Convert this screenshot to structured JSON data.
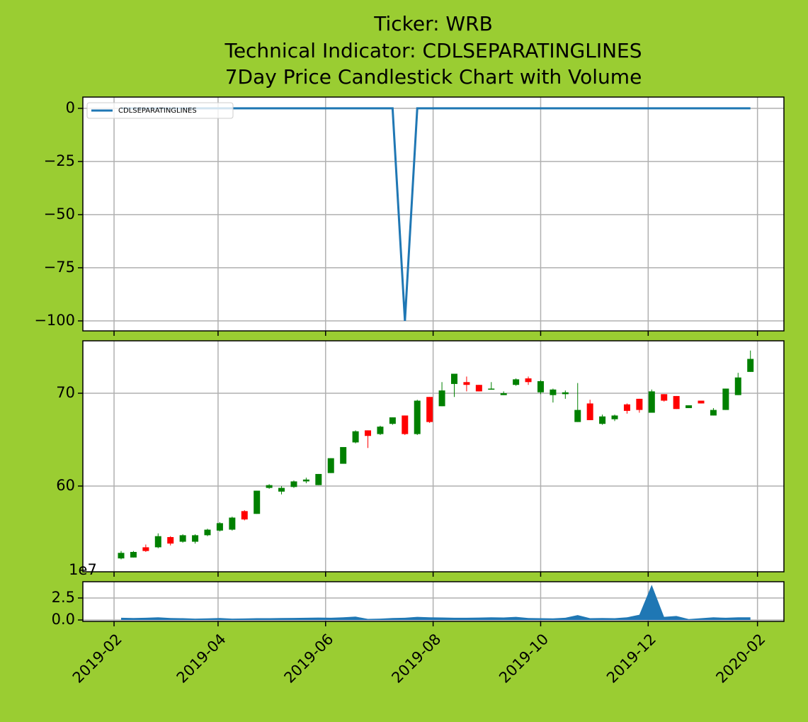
{
  "chart_data": [
    {
      "type": "line",
      "title": [
        "Ticker: WRB",
        "Technical Indicator: CDLSEPARATINGLINES",
        "7Day Price Candlestick Chart with Volume"
      ],
      "x": [
        35,
        42,
        49,
        56,
        63,
        70,
        77,
        84,
        91,
        98,
        105,
        112,
        119,
        126,
        133,
        140,
        147,
        154,
        161,
        168,
        175,
        182,
        189,
        196,
        203,
        210,
        217,
        224,
        231,
        238,
        245,
        252,
        259,
        266,
        273,
        280,
        287,
        294,
        301,
        308,
        315,
        322,
        329,
        336,
        343,
        350,
        357,
        364,
        371,
        378,
        385,
        392
      ],
      "xlim": [
        13.3,
        411
      ],
      "series": [
        {
          "name": "CDLSEPARATINGLINES",
          "color": "#1f77b4",
          "values": [
            0,
            0,
            0,
            0,
            0,
            0,
            0,
            0,
            0,
            0,
            0,
            0,
            0,
            0,
            0,
            0,
            0,
            0,
            0,
            0,
            0,
            0,
            0,
            -100,
            0,
            0,
            0,
            0,
            0,
            0,
            0,
            0,
            0,
            0,
            0,
            0,
            0,
            0,
            0,
            0,
            0,
            0,
            0,
            0,
            0,
            0,
            0,
            0,
            0,
            0,
            0,
            0
          ]
        }
      ],
      "ylim": [
        -104.7,
        5.3
      ],
      "yticks": [
        0,
        {
          "value": -25,
          "label": "−25"
        },
        {
          "value": -50,
          "label": "−50"
        },
        {
          "value": -75,
          "label": "−75"
        },
        {
          "value": -100,
          "label": "−100"
        }
      ],
      "grid": true,
      "legend": "upper left"
    },
    {
      "type": "candlestick",
      "x": [
        35,
        42,
        49,
        56,
        63,
        70,
        77,
        84,
        91,
        98,
        105,
        112,
        119,
        126,
        133,
        140,
        147,
        154,
        161,
        168,
        175,
        182,
        189,
        196,
        203,
        210,
        217,
        224,
        231,
        238,
        245,
        252,
        259,
        266,
        273,
        280,
        287,
        294,
        301,
        308,
        315,
        322,
        329,
        336,
        343,
        350,
        357,
        364,
        371,
        378,
        385,
        392
      ],
      "xlim": [
        13.3,
        411
      ],
      "open": [
        52.2,
        52.3,
        53.4,
        53.4,
        54.5,
        54.0,
        54.0,
        54.7,
        55.2,
        55.3,
        57.3,
        57.0,
        59.8,
        59.4,
        59.9,
        60.5,
        60.1,
        61.4,
        62.4,
        64.7,
        66.0,
        65.6,
        66.7,
        67.6,
        65.6,
        69.6,
        68.6,
        71.0,
        71.2,
        70.9,
        70.4,
        69.8,
        70.9,
        71.6,
        70.1,
        69.8,
        69.9,
        66.9,
        68.9,
        66.7,
        67.2,
        68.8,
        69.4,
        67.9,
        69.9,
        69.7,
        68.4,
        69.2,
        67.6,
        68.2,
        69.8,
        72.3
      ],
      "high": [
        53.0,
        53.0,
        53.7,
        54.9,
        54.6,
        54.8,
        54.8,
        55.4,
        56.1,
        56.7,
        57.4,
        59.5,
        60.2,
        60.0,
        60.6,
        60.9,
        61.3,
        63.0,
        64.2,
        66.0,
        66.0,
        66.5,
        67.4,
        67.6,
        69.3,
        69.6,
        71.2,
        72.1,
        71.8,
        70.9,
        71.2,
        70.2,
        71.6,
        71.8,
        71.4,
        70.5,
        70.3,
        71.1,
        69.3,
        67.7,
        67.7,
        68.9,
        69.4,
        70.4,
        69.9,
        69.7,
        68.7,
        69.2,
        68.4,
        70.5,
        72.2,
        74.6
      ],
      "low": [
        52.1,
        52.3,
        52.9,
        53.3,
        53.6,
        53.9,
        53.8,
        54.6,
        55.1,
        55.2,
        56.3,
        57.0,
        59.7,
        59.1,
        59.8,
        60.3,
        60.1,
        61.4,
        62.4,
        64.6,
        64.1,
        65.5,
        66.6,
        65.5,
        65.5,
        66.8,
        68.6,
        69.6,
        70.2,
        70.2,
        70.4,
        69.8,
        70.8,
        70.9,
        69.9,
        69.0,
        69.4,
        66.9,
        67.1,
        66.6,
        67.0,
        67.8,
        67.9,
        67.9,
        69.1,
        68.3,
        68.4,
        68.9,
        67.6,
        68.2,
        69.8,
        72.3
      ],
      "close": [
        52.8,
        52.9,
        53.0,
        54.6,
        53.8,
        54.7,
        54.7,
        55.3,
        56.0,
        56.6,
        56.4,
        59.5,
        60.1,
        59.8,
        60.5,
        60.7,
        61.3,
        63.0,
        64.2,
        65.9,
        65.4,
        66.4,
        67.4,
        65.6,
        69.2,
        66.9,
        70.3,
        72.1,
        70.9,
        70.2,
        70.5,
        70.0,
        71.5,
        71.2,
        71.3,
        70.4,
        70.1,
        68.2,
        67.1,
        67.5,
        67.6,
        68.1,
        68.2,
        70.2,
        69.2,
        68.3,
        68.7,
        68.9,
        68.2,
        70.5,
        71.7,
        73.7
      ],
      "up_color": "#008000",
      "down_color": "#ff0000",
      "ylim": [
        50.76,
        75.65
      ],
      "yticks": [
        70,
        60
      ],
      "grid": true
    },
    {
      "type": "area",
      "x": [
        35,
        42,
        49,
        56,
        63,
        70,
        77,
        84,
        91,
        98,
        105,
        112,
        119,
        126,
        133,
        140,
        147,
        154,
        161,
        168,
        175,
        182,
        189,
        196,
        203,
        210,
        217,
        224,
        231,
        238,
        245,
        252,
        259,
        266,
        273,
        280,
        287,
        294,
        301,
        308,
        315,
        322,
        329,
        336,
        343,
        350,
        357,
        364,
        371,
        378,
        385,
        392
      ],
      "xlim": [
        13.3,
        411
      ],
      "series": [
        {
          "color": "#1f77b4",
          "values": [
            0.25,
            0.22,
            0.25,
            0.3,
            0.22,
            0.2,
            0.15,
            0.18,
            0.22,
            0.15,
            0.17,
            0.2,
            0.2,
            0.22,
            0.23,
            0.25,
            0.27,
            0.25,
            0.3,
            0.38,
            0.12,
            0.15,
            0.22,
            0.25,
            0.35,
            0.3,
            0.28,
            0.25,
            0.25,
            0.27,
            0.3,
            0.28,
            0.35,
            0.22,
            0.2,
            0.18,
            0.25,
            0.55,
            0.2,
            0.22,
            0.2,
            0.3,
            0.6,
            4.0,
            0.35,
            0.45,
            0.1,
            0.2,
            0.3,
            0.25,
            0.3,
            0.3
          ]
        }
      ],
      "ylim": [
        -0.16,
        4.35
      ],
      "yticks": [
        {
          "value": 0,
          "label": "0.0"
        },
        2.5
      ],
      "offset_label": "1e7",
      "xticks": [
        {
          "value": 31,
          "label": "2019-02"
        },
        {
          "value": 90,
          "label": "2019-04"
        },
        {
          "value": 151,
          "label": "2019-06"
        },
        {
          "value": 212,
          "label": "2019-08"
        },
        {
          "value": 273,
          "label": "2019-10"
        },
        {
          "value": 334,
          "label": "2019-12"
        },
        {
          "value": 396,
          "label": "2020-02"
        }
      ],
      "grid": true
    }
  ]
}
